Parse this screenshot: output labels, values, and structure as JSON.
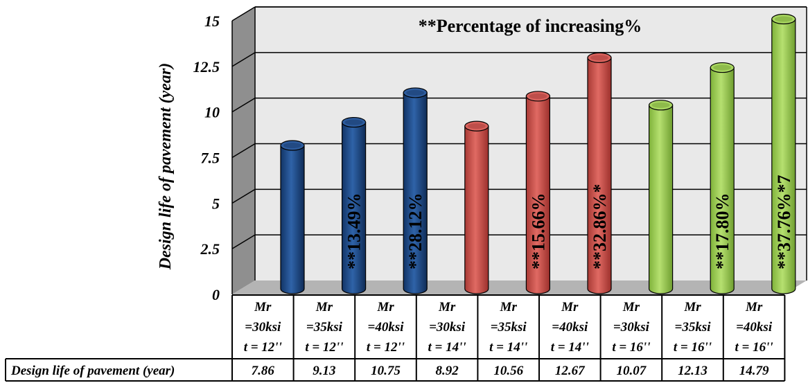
{
  "chart_data": {
    "type": "bar",
    "ylabel": "Design life of pavement (year)",
    "ylim": [
      0,
      15
    ],
    "yticks": [
      "0",
      "2.5",
      "5",
      "7.5",
      "10",
      "12.5",
      "15"
    ],
    "grid": true,
    "annotation_title": "**Percentage of increasing%",
    "categories": [
      [
        "Mr",
        "=30ksi",
        "t = 12''"
      ],
      [
        "Mr",
        "=35ksi",
        "t = 12''"
      ],
      [
        "Mr",
        "=40ksi",
        "t = 12''"
      ],
      [
        "Mr",
        "=30ksi",
        "t = 14''"
      ],
      [
        "Mr",
        "=35ksi",
        "t = 14''"
      ],
      [
        "Mr",
        "=40ksi",
        "t = 14''"
      ],
      [
        "Mr",
        "=30ksi",
        "t = 16''"
      ],
      [
        "Mr",
        "=35ksi",
        "t = 16''"
      ],
      [
        "Mr",
        "=40ksi",
        "t = 16''"
      ]
    ],
    "values": [
      7.86,
      9.13,
      10.75,
      8.92,
      10.56,
      12.67,
      10.07,
      12.13,
      14.79
    ],
    "value_labels": [
      "7.86",
      "9.13",
      "10.75",
      "8.92",
      "10.56",
      "12.67",
      "10.07",
      "12.13",
      "14.79"
    ],
    "bar_annotations": [
      "",
      "**13.49%",
      "**28.12%",
      "",
      "**15.66%",
      "**32.86%*",
      "",
      "**17.80%",
      "**37.76%*7"
    ],
    "bar_colors": [
      "#1f4e8c",
      "#1f4e8c",
      "#1f4e8c",
      "#c9504a",
      "#c9504a",
      "#c9504a",
      "#9acc4e",
      "#9acc4e",
      "#9acc4e"
    ],
    "table": {
      "row_header": "Design life of pavement (year)"
    }
  }
}
